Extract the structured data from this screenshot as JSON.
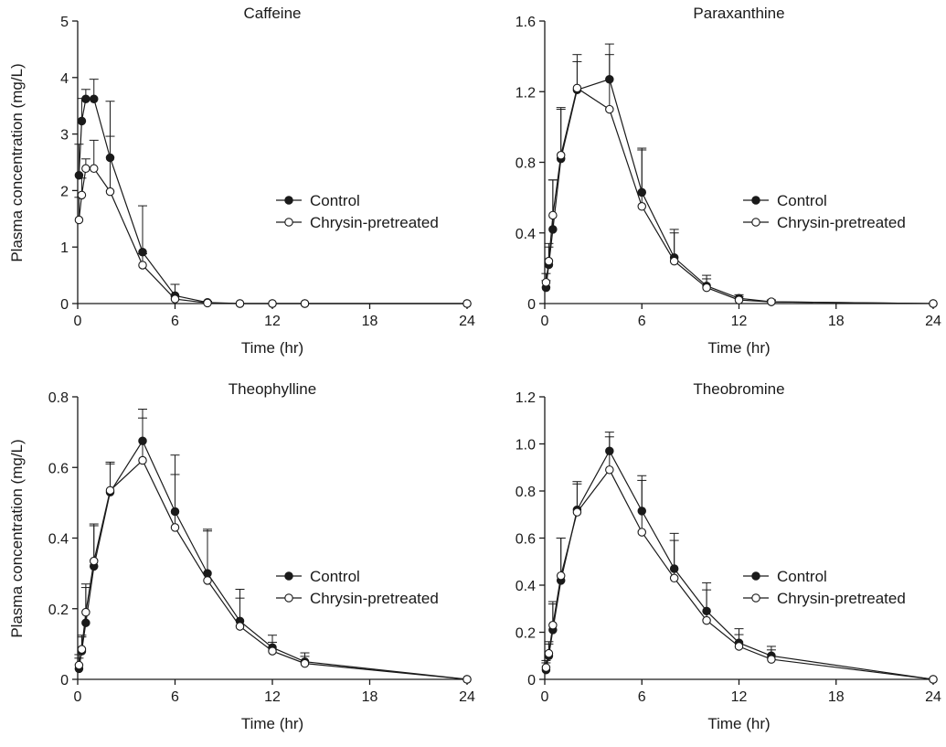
{
  "figure": {
    "ylabel": "Plasma concentration (mg/L)",
    "legend": [
      "Control",
      "Chrysin-pretreated"
    ]
  },
  "chart_data": [
    {
      "type": "line",
      "title": "Caffeine",
      "xlabel": "Time (hr)",
      "ylabel": "Plasma concentration (mg/L)",
      "xlim": [
        0,
        24
      ],
      "ylim": [
        0,
        5
      ],
      "xticks": [
        "0",
        "6",
        "12",
        "18",
        "24"
      ],
      "yticks": [
        "0",
        "1",
        "2",
        "3",
        "4",
        "5"
      ],
      "legend_position": "center-right",
      "series": [
        {
          "name": "Control",
          "marker": "filled-circle",
          "x": [
            0.08,
            0.25,
            0.5,
            1,
            2,
            4,
            6,
            8,
            10,
            12,
            14,
            24
          ],
          "y": [
            2.27,
            3.23,
            3.62,
            3.62,
            2.58,
            0.91,
            0.14,
            0.02,
            0,
            0,
            0,
            0
          ],
          "error": [
            0.55,
            0.4,
            0.17,
            0.35,
            1.0,
            0.82,
            0.2,
            0.02,
            0,
            0,
            0,
            0
          ]
        },
        {
          "name": "Chrysin-pretreated",
          "marker": "open-circle",
          "x": [
            0.08,
            0.25,
            0.5,
            1,
            2,
            4,
            6,
            8,
            10,
            12,
            14,
            24
          ],
          "y": [
            1.48,
            1.92,
            2.39,
            2.39,
            1.98,
            0.68,
            0.08,
            0.01,
            0,
            0,
            0,
            0
          ],
          "error": [
            0.4,
            0.3,
            0.17,
            0.5,
            0.98,
            0.2,
            0.05,
            0.01,
            0,
            0,
            0,
            0
          ]
        }
      ]
    },
    {
      "type": "line",
      "title": "Paraxanthine",
      "xlabel": "Time (hr)",
      "ylabel": "",
      "xlim": [
        0,
        24
      ],
      "ylim": [
        0,
        1.6
      ],
      "xticks": [
        "0",
        "6",
        "12",
        "18",
        "24"
      ],
      "yticks": [
        "0",
        "0.4",
        "0.8",
        "1.2",
        "1.6"
      ],
      "legend_position": "center-right",
      "series": [
        {
          "name": "Control",
          "marker": "filled-circle",
          "x": [
            0.08,
            0.25,
            0.5,
            1,
            2,
            4,
            6,
            8,
            10,
            12,
            14,
            24
          ],
          "y": [
            0.09,
            0.22,
            0.42,
            0.82,
            1.21,
            1.27,
            0.63,
            0.26,
            0.1,
            0.03,
            0.01,
            0
          ],
          "error": [
            0.04,
            0.1,
            0.28,
            0.28,
            0.16,
            0.2,
            0.25,
            0.16,
            0.06,
            0.02,
            0.01,
            0
          ]
        },
        {
          "name": "Chrysin-pretreated",
          "marker": "open-circle",
          "x": [
            0.08,
            0.25,
            0.5,
            1,
            2,
            4,
            6,
            8,
            10,
            12,
            14,
            24
          ],
          "y": [
            0.12,
            0.24,
            0.5,
            0.84,
            1.22,
            1.1,
            0.55,
            0.24,
            0.09,
            0.02,
            0.01,
            0
          ],
          "error": [
            0.05,
            0.1,
            0.2,
            0.27,
            0.19,
            0.31,
            0.32,
            0.16,
            0.05,
            0.02,
            0.01,
            0
          ]
        }
      ]
    },
    {
      "type": "line",
      "title": "Theophylline",
      "xlabel": "Time (hr)",
      "ylabel": "Plasma concentration (mg/L)",
      "xlim": [
        0,
        24
      ],
      "ylim": [
        0,
        0.8
      ],
      "xticks": [
        "0",
        "6",
        "12",
        "18",
        "24"
      ],
      "yticks": [
        "0",
        "0.2",
        "0.4",
        "0.6",
        "0.8"
      ],
      "legend_position": "center-right",
      "series": [
        {
          "name": "Control",
          "marker": "filled-circle",
          "x": [
            0.08,
            0.25,
            0.5,
            1,
            2,
            4,
            6,
            8,
            10,
            12,
            14,
            24
          ],
          "y": [
            0.03,
            0.08,
            0.16,
            0.32,
            0.53,
            0.675,
            0.475,
            0.3,
            0.165,
            0.09,
            0.05,
            0
          ],
          "error": [
            0.03,
            0.04,
            0.1,
            0.12,
            0.08,
            0.09,
            0.16,
            0.125,
            0.09,
            0.035,
            0.025,
            0
          ]
        },
        {
          "name": "Chrysin-pretreated",
          "marker": "open-circle",
          "x": [
            0.08,
            0.25,
            0.5,
            1,
            2,
            4,
            6,
            8,
            10,
            12,
            14,
            24
          ],
          "y": [
            0.04,
            0.085,
            0.19,
            0.335,
            0.535,
            0.62,
            0.43,
            0.28,
            0.15,
            0.08,
            0.045,
            0
          ],
          "error": [
            0.03,
            0.04,
            0.08,
            0.1,
            0.08,
            0.12,
            0.15,
            0.14,
            0.08,
            0.025,
            0.02,
            0
          ]
        }
      ]
    },
    {
      "type": "line",
      "title": "Theobromine",
      "xlabel": "Time (hr)",
      "ylabel": "",
      "xlim": [
        0,
        24
      ],
      "ylim": [
        0,
        1.2
      ],
      "xticks": [
        "0",
        "6",
        "12",
        "18",
        "24"
      ],
      "yticks": [
        "0",
        "0.2",
        "0.4",
        "0.6",
        "0.8",
        "1.0",
        "1.2"
      ],
      "legend_position": "center-right",
      "series": [
        {
          "name": "Control",
          "marker": "filled-circle",
          "x": [
            0.08,
            0.25,
            0.5,
            1,
            2,
            4,
            6,
            8,
            10,
            12,
            14,
            24
          ],
          "y": [
            0.04,
            0.1,
            0.21,
            0.42,
            0.72,
            0.97,
            0.715,
            0.47,
            0.29,
            0.155,
            0.1,
            0
          ],
          "error": [
            0.03,
            0.05,
            0.12,
            0.18,
            0.12,
            0.08,
            0.15,
            0.15,
            0.12,
            0.06,
            0.04,
            0
          ]
        },
        {
          "name": "Chrysin-pretreated",
          "marker": "open-circle",
          "x": [
            0.08,
            0.25,
            0.5,
            1,
            2,
            4,
            6,
            8,
            10,
            12,
            14,
            24
          ],
          "y": [
            0.05,
            0.11,
            0.23,
            0.44,
            0.71,
            0.89,
            0.625,
            0.43,
            0.25,
            0.14,
            0.085,
            0
          ],
          "error": [
            0.03,
            0.05,
            0.09,
            0.16,
            0.12,
            0.14,
            0.22,
            0.16,
            0.13,
            0.05,
            0.04,
            0
          ]
        }
      ]
    }
  ]
}
